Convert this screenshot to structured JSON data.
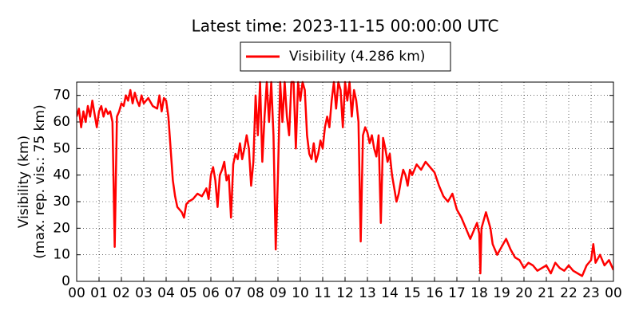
{
  "chart_data": {
    "type": "line",
    "title": "Latest time: 2023-11-15 00:00:00 UTC",
    "y_label": [
      "Visibility (km)",
      "(max. rep. vis.: 75 km)"
    ],
    "legend_loc": "upper center",
    "grid": true,
    "xlim": [
      0,
      24
    ],
    "ylim": [
      0,
      75
    ],
    "yticks": [
      0,
      10,
      20,
      30,
      40,
      50,
      60,
      70
    ],
    "xticks": [
      {
        "value": 0,
        "label": "00"
      },
      {
        "value": 1,
        "label": "01"
      },
      {
        "value": 2,
        "label": "02"
      },
      {
        "value": 3,
        "label": "03"
      },
      {
        "value": 4,
        "label": "04"
      },
      {
        "value": 5,
        "label": "05"
      },
      {
        "value": 6,
        "label": "06"
      },
      {
        "value": 7,
        "label": "07"
      },
      {
        "value": 8,
        "label": "08"
      },
      {
        "value": 9,
        "label": "09"
      },
      {
        "value": 10,
        "label": "10"
      },
      {
        "value": 11,
        "label": "11"
      },
      {
        "value": 12,
        "label": "12"
      },
      {
        "value": 13,
        "label": "13"
      },
      {
        "value": 14,
        "label": "14"
      },
      {
        "value": 15,
        "label": "15"
      },
      {
        "value": 16,
        "label": "16"
      },
      {
        "value": 17,
        "label": "17"
      },
      {
        "value": 18,
        "label": "18"
      },
      {
        "value": 19,
        "label": "19"
      },
      {
        "value": 20,
        "label": "20"
      },
      {
        "value": 21,
        "label": "21"
      },
      {
        "value": 22,
        "label": "22"
      },
      {
        "value": 23,
        "label": "23"
      },
      {
        "value": 24,
        "label": "00"
      }
    ],
    "x": [
      0,
      0.1,
      0.2,
      0.3,
      0.4,
      0.5,
      0.6,
      0.7,
      0.8,
      0.9,
      1.0,
      1.1,
      1.2,
      1.3,
      1.4,
      1.5,
      1.6,
      1.7,
      1.8,
      1.9,
      2.0,
      2.1,
      2.2,
      2.3,
      2.4,
      2.5,
      2.6,
      2.7,
      2.8,
      2.9,
      3.0,
      3.2,
      3.4,
      3.6,
      3.7,
      3.8,
      3.9,
      4.0,
      4.1,
      4.2,
      4.3,
      4.4,
      4.5,
      4.6,
      4.7,
      4.8,
      4.9,
      5.0,
      5.2,
      5.4,
      5.6,
      5.8,
      5.9,
      6.0,
      6.1,
      6.2,
      6.3,
      6.4,
      6.5,
      6.6,
      6.7,
      6.8,
      6.9,
      7.0,
      7.1,
      7.2,
      7.3,
      7.4,
      7.5,
      7.6,
      7.7,
      7.8,
      7.9,
      8.0,
      8.1,
      8.2,
      8.3,
      8.4,
      8.5,
      8.6,
      8.7,
      8.8,
      8.9,
      9.0,
      9.1,
      9.2,
      9.3,
      9.4,
      9.5,
      9.6,
      9.7,
      9.8,
      9.9,
      10.0,
      10.1,
      10.2,
      10.3,
      10.4,
      10.5,
      10.6,
      10.7,
      10.8,
      10.9,
      11.0,
      11.1,
      11.2,
      11.3,
      11.4,
      11.5,
      11.6,
      11.7,
      11.8,
      11.9,
      12.0,
      12.1,
      12.2,
      12.3,
      12.4,
      12.5,
      12.6,
      12.7,
      12.8,
      12.9,
      13.0,
      13.1,
      13.2,
      13.3,
      13.4,
      13.5,
      13.6,
      13.7,
      13.8,
      13.9,
      14.0,
      14.1,
      14.2,
      14.3,
      14.4,
      14.5,
      14.6,
      14.7,
      14.8,
      14.9,
      15.0,
      15.2,
      15.4,
      15.6,
      15.8,
      16.0,
      16.2,
      16.4,
      16.6,
      16.8,
      17.0,
      17.2,
      17.4,
      17.6,
      17.8,
      17.9,
      18.0,
      18.05,
      18.1,
      18.3,
      18.5,
      18.6,
      18.8,
      19.0,
      19.2,
      19.4,
      19.6,
      19.8,
      20.0,
      20.2,
      20.4,
      20.6,
      20.8,
      21.0,
      21.2,
      21.4,
      21.6,
      21.8,
      22.0,
      22.2,
      22.4,
      22.6,
      22.8,
      23.0,
      23.1,
      23.2,
      23.4,
      23.6,
      23.8,
      24.0
    ],
    "series": [
      {
        "name": "Visibility (4.286 km)",
        "color": "#ff0000",
        "values": [
          62,
          65,
          58,
          64,
          60,
          66,
          62,
          68,
          63,
          58,
          64,
          66,
          62,
          65,
          63,
          64,
          60,
          13,
          62,
          64,
          67,
          66,
          70,
          68,
          72,
          67,
          71,
          68,
          66,
          70,
          67,
          69,
          66,
          65,
          70,
          64,
          69,
          68,
          62,
          50,
          38,
          32,
          28,
          27,
          26,
          24,
          29,
          30,
          31,
          33,
          32,
          35,
          31,
          40,
          43,
          38,
          28,
          40,
          42,
          45,
          38,
          40,
          24,
          44,
          48,
          46,
          52,
          46,
          50,
          55,
          50,
          36,
          45,
          70,
          55,
          75,
          45,
          62,
          75,
          60,
          75,
          55,
          12,
          40,
          75,
          60,
          75,
          62,
          55,
          75,
          75,
          50,
          75,
          68,
          75,
          72,
          55,
          48,
          46,
          52,
          45,
          48,
          53,
          50,
          58,
          62,
          58,
          68,
          75,
          65,
          75,
          72,
          58,
          75,
          68,
          75,
          62,
          72,
          68,
          60,
          15,
          55,
          58,
          56,
          52,
          55,
          50,
          47,
          55,
          22,
          54,
          50,
          45,
          48,
          40,
          35,
          30,
          33,
          38,
          42,
          40,
          36,
          42,
          40,
          44,
          42,
          45,
          43,
          41,
          36,
          32,
          30,
          33,
          27,
          24,
          20,
          16,
          20,
          22,
          18,
          3,
          20,
          26,
          20,
          14,
          10,
          13,
          16,
          12,
          9,
          8,
          5,
          7,
          6,
          4,
          5,
          6,
          3,
          7,
          5,
          4,
          6,
          4,
          3,
          2,
          6,
          8,
          14,
          7,
          10,
          6,
          8,
          4.286
        ]
      }
    ]
  }
}
